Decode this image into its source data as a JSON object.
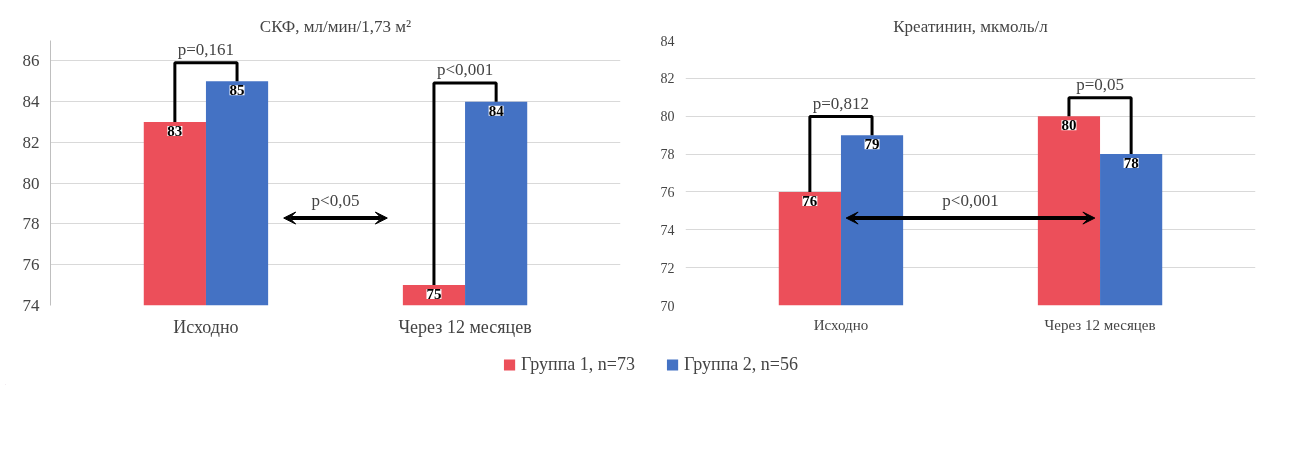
{
  "chart_data": [
    {
      "type": "bar",
      "title": "СКФ, мл/мин/1,73 м²",
      "categories": [
        "Исходно",
        "Через 12 месяцев"
      ],
      "series": [
        {
          "name": "Группа 1, n=73",
          "color": "#ec4f5a",
          "values": [
            83,
            75
          ]
        },
        {
          "name": "Группа 2, n=56",
          "color": "#4472c4",
          "values": [
            85,
            84
          ]
        }
      ],
      "ylim": [
        74,
        87
      ],
      "yticks": [
        74,
        76,
        78,
        80,
        82,
        84,
        86
      ],
      "grid": "y",
      "data_labels": true,
      "legend": "bottom",
      "annotations": [
        "p=0,161",
        "p<0,001",
        "p<0,05"
      ]
    },
    {
      "type": "bar",
      "title": "Креатинин, мкмоль/л",
      "categories": [
        "Исходно",
        "Через 12 месяцев"
      ],
      "series": [
        {
          "color": "#ec4f5a",
          "values": [
            76,
            80
          ]
        },
        {
          "color": "#4472c4",
          "values": [
            79,
            78
          ]
        }
      ],
      "ylim": [
        70,
        84
      ],
      "yticks": [
        70,
        72,
        74,
        76,
        78,
        80,
        82,
        84
      ],
      "grid": "y",
      "data_labels": true,
      "annotations": [
        "p=0,812",
        "p=0,05",
        "p<0,001"
      ]
    }
  ]
}
